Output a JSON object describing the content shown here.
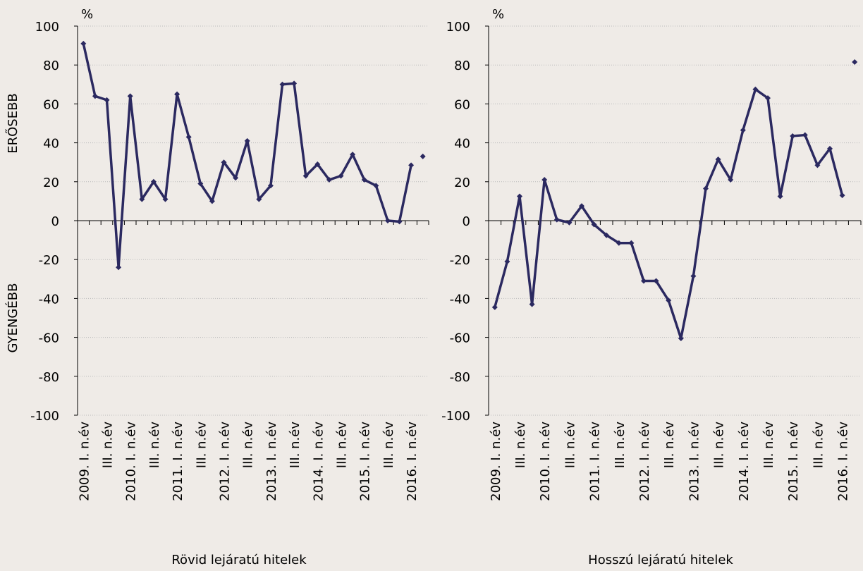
{
  "chart_data": [
    {
      "type": "line",
      "title": "Rövid lejáratú hitelek",
      "y_unit": "%",
      "annotations": [
        "ERŐSEBB",
        "GYENGÉBB"
      ],
      "categories": [
        "2009. I. n.év",
        null,
        "III. n.év",
        null,
        "2010. I. n.év",
        null,
        "III. n.év",
        null,
        "2011. I. n.év",
        null,
        "III. n.év",
        null,
        "2012. I. n.év",
        null,
        "III. n.év",
        null,
        "2013. I. n.év",
        null,
        "III. n.év",
        null,
        "2014. I. n.év",
        null,
        "III. n.év",
        null,
        "2015. I. n.év",
        null,
        "III. n.év",
        null,
        "2016. I. n.év",
        null
      ],
      "series": [
        {
          "color": "#2b2960",
          "line": true,
          "values": [
            91,
            64,
            62,
            -24,
            64,
            11,
            20,
            11,
            65,
            43,
            19,
            10,
            30,
            22,
            41,
            11,
            18,
            70,
            70.5,
            23,
            29,
            21,
            23,
            34,
            21,
            18,
            0,
            -0.5,
            28.5,
            null
          ]
        },
        {
          "color": "#2b2960",
          "line": false,
          "values": [
            null,
            null,
            null,
            null,
            null,
            null,
            null,
            null,
            null,
            null,
            null,
            null,
            null,
            null,
            null,
            null,
            null,
            null,
            null,
            null,
            null,
            null,
            null,
            null,
            null,
            null,
            null,
            null,
            null,
            33
          ]
        }
      ],
      "ylim": [
        -100,
        100
      ],
      "yticks": [
        -100,
        -80,
        -60,
        -40,
        -20,
        0,
        20,
        40,
        60,
        80,
        100
      ],
      "grid": true
    },
    {
      "type": "line",
      "title": "Hosszú lejáratú hitelek",
      "y_unit": "%",
      "categories": [
        "2009. I. n.év",
        null,
        "III. n.év",
        null,
        "2010. I. n.év",
        null,
        "III. n.év",
        null,
        "2011. I. n.év",
        null,
        "III. n.év",
        null,
        "2012. I. n.év",
        null,
        "III. n.év",
        null,
        "2013. I. n.év",
        null,
        "III. n.év",
        null,
        "2014. I. n.év",
        null,
        "III. n.év",
        null,
        "2015. I. n.év",
        null,
        "III. n.év",
        null,
        "2016. I. n.év",
        null
      ],
      "series": [
        {
          "color": "#2b2960",
          "line": true,
          "values": [
            -44.5,
            -21,
            12.5,
            -43,
            21,
            0.5,
            -1,
            7.5,
            -2,
            -7.5,
            -11.5,
            -11.5,
            -31,
            -31,
            -41,
            -60.5,
            -28.5,
            16.5,
            31.5,
            21,
            46.5,
            67.5,
            63,
            12.5,
            43.5,
            44,
            28.5,
            37,
            13,
            null
          ]
        },
        {
          "color": "#2b2960",
          "line": false,
          "values": [
            null,
            null,
            null,
            null,
            null,
            null,
            null,
            null,
            null,
            null,
            null,
            null,
            null,
            null,
            null,
            null,
            null,
            null,
            null,
            null,
            null,
            null,
            null,
            null,
            null,
            null,
            null,
            null,
            null,
            81.5
          ]
        }
      ],
      "ylim": [
        -100,
        100
      ],
      "yticks": [
        -100,
        -80,
        -60,
        -40,
        -20,
        0,
        20,
        40,
        60,
        80,
        100
      ],
      "grid": true
    }
  ]
}
